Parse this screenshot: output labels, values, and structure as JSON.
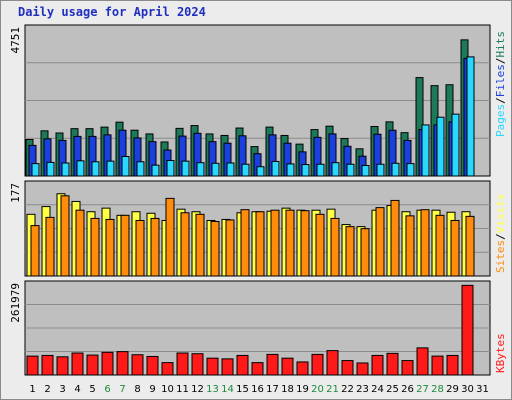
{
  "title": "Daily usage for April 2024",
  "colors": {
    "hits": "#1d7a58",
    "files": "#1c3fe0",
    "pages": "#28d8ff",
    "visits": "#ffff44",
    "sites": "#ff8c0a",
    "kbytes": "#ff1a1a",
    "panel_bg": "#bfbfbf",
    "weekend_label": "#1d8a3c",
    "weekday_label": "#000000"
  },
  "chart_data": [
    {
      "type": "bar",
      "title": "Daily usage for April 2024",
      "panel": "hits-files-pages",
      "max_label": "4751",
      "ylim": [
        0,
        4751
      ],
      "categories": [
        "1",
        "2",
        "3",
        "4",
        "5",
        "6",
        "7",
        "8",
        "9",
        "10",
        "11",
        "12",
        "13",
        "14",
        "15",
        "16",
        "17",
        "18",
        "19",
        "20",
        "21",
        "22",
        "23",
        "24",
        "25",
        "26",
        "27",
        "28",
        "29",
        "30",
        "31"
      ],
      "weekend_days": [
        "6",
        "7",
        "13",
        "14",
        "20",
        "21",
        "27",
        "28"
      ],
      "series": [
        {
          "name": "Hits",
          "values": [
            1180,
            1460,
            1390,
            1530,
            1530,
            1580,
            1740,
            1480,
            1360,
            1100,
            1540,
            1630,
            1360,
            1310,
            1550,
            950,
            1580,
            1310,
            1030,
            1500,
            1610,
            1210,
            880,
            1600,
            1750,
            1400,
            3180,
            2920,
            2950,
            4400,
            0
          ]
        },
        {
          "name": "Files",
          "values": [
            990,
            1200,
            1150,
            1280,
            1280,
            1330,
            1480,
            1230,
            1110,
            840,
            1290,
            1380,
            1110,
            1060,
            1300,
            720,
            1330,
            1060,
            780,
            1250,
            1360,
            960,
            640,
            1350,
            1480,
            1150,
            1500,
            1650,
            1750,
            3800,
            0
          ]
        },
        {
          "name": "Pages",
          "values": [
            400,
            440,
            420,
            490,
            460,
            480,
            630,
            460,
            350,
            500,
            480,
            430,
            410,
            420,
            380,
            300,
            470,
            390,
            370,
            380,
            430,
            380,
            340,
            380,
            410,
            400,
            1650,
            1900,
            2000,
            3850,
            0
          ]
        }
      ]
    },
    {
      "type": "bar",
      "panel": "visits-sites",
      "max_label": "177",
      "ylim": [
        0,
        177
      ],
      "categories": [
        "1",
        "2",
        "3",
        "4",
        "5",
        "6",
        "7",
        "8",
        "9",
        "10",
        "11",
        "12",
        "13",
        "14",
        "15",
        "16",
        "17",
        "18",
        "19",
        "20",
        "21",
        "22",
        "23",
        "24",
        "25",
        "26",
        "27",
        "28",
        "29",
        "30",
        "31"
      ],
      "series": [
        {
          "name": "Visits",
          "values": [
            120,
            135,
            160,
            145,
            125,
            132,
            118,
            125,
            122,
            108,
            130,
            125,
            108,
            110,
            123,
            125,
            126,
            132,
            128,
            128,
            130,
            100,
            96,
            128,
            137,
            125,
            128,
            128,
            124,
            125,
            0
          ]
        },
        {
          "name": "Sites",
          "values": [
            98,
            114,
            156,
            128,
            112,
            110,
            118,
            108,
            112,
            151,
            123,
            120,
            106,
            109,
            129,
            125,
            128,
            128,
            127,
            120,
            112,
            96,
            92,
            133,
            147,
            117,
            129,
            118,
            108,
            116,
            0
          ]
        }
      ]
    },
    {
      "type": "bar",
      "panel": "kbytes",
      "max_label": "261979",
      "ylim": [
        0,
        261979
      ],
      "categories": [
        "1",
        "2",
        "3",
        "4",
        "5",
        "6",
        "7",
        "8",
        "9",
        "10",
        "11",
        "12",
        "13",
        "14",
        "15",
        "16",
        "17",
        "18",
        "19",
        "20",
        "21",
        "22",
        "23",
        "24",
        "25",
        "26",
        "27",
        "28",
        "29",
        "30",
        "31"
      ],
      "series": [
        {
          "name": "KBytes",
          "values": [
            55000,
            57000,
            53000,
            64000,
            58000,
            66000,
            68000,
            59000,
            54000,
            36000,
            64000,
            62000,
            49000,
            47000,
            57000,
            36000,
            60000,
            49000,
            38000,
            60000,
            71000,
            42000,
            35000,
            57000,
            63000,
            42000,
            79000,
            55000,
            57000,
            261000,
            0
          ]
        }
      ]
    }
  ],
  "legend": {
    "panel1": [
      "Pages",
      "/",
      "Files",
      "/",
      "Hits"
    ],
    "panel2": [
      "Sites",
      "/",
      "Visits"
    ],
    "panel3": [
      "KBytes"
    ]
  }
}
